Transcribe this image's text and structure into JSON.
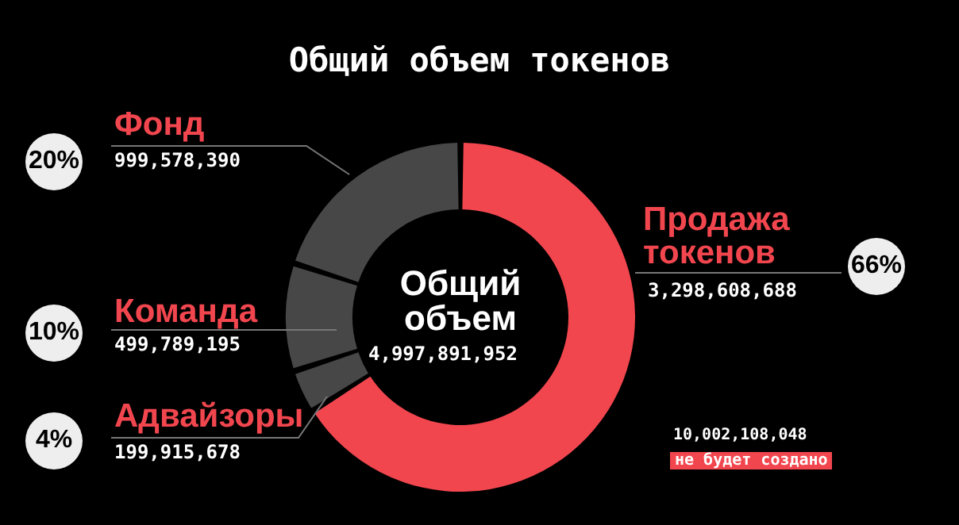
{
  "chart_data": {
    "type": "donut",
    "title": "Общий объем токенов",
    "categories": [
      "Продажа токенов",
      "Адвайзоры",
      "Команда",
      "Фонд"
    ],
    "values": [
      3298608688,
      199915678,
      499789195,
      999578390
    ],
    "colors": [
      "#f2464f",
      "#474747",
      "#474747",
      "#474747"
    ],
    "value_labels": [
      "3,298,608,688",
      "199,915,678",
      "499,789,195",
      "999,578,390"
    ],
    "annotations": [
      "66%",
      "4%",
      "10%",
      "20%",
      "Общий объем",
      "4,997,891,952",
      "10,002,108,048",
      "не будет создано"
    ],
    "legend": false
  }
}
